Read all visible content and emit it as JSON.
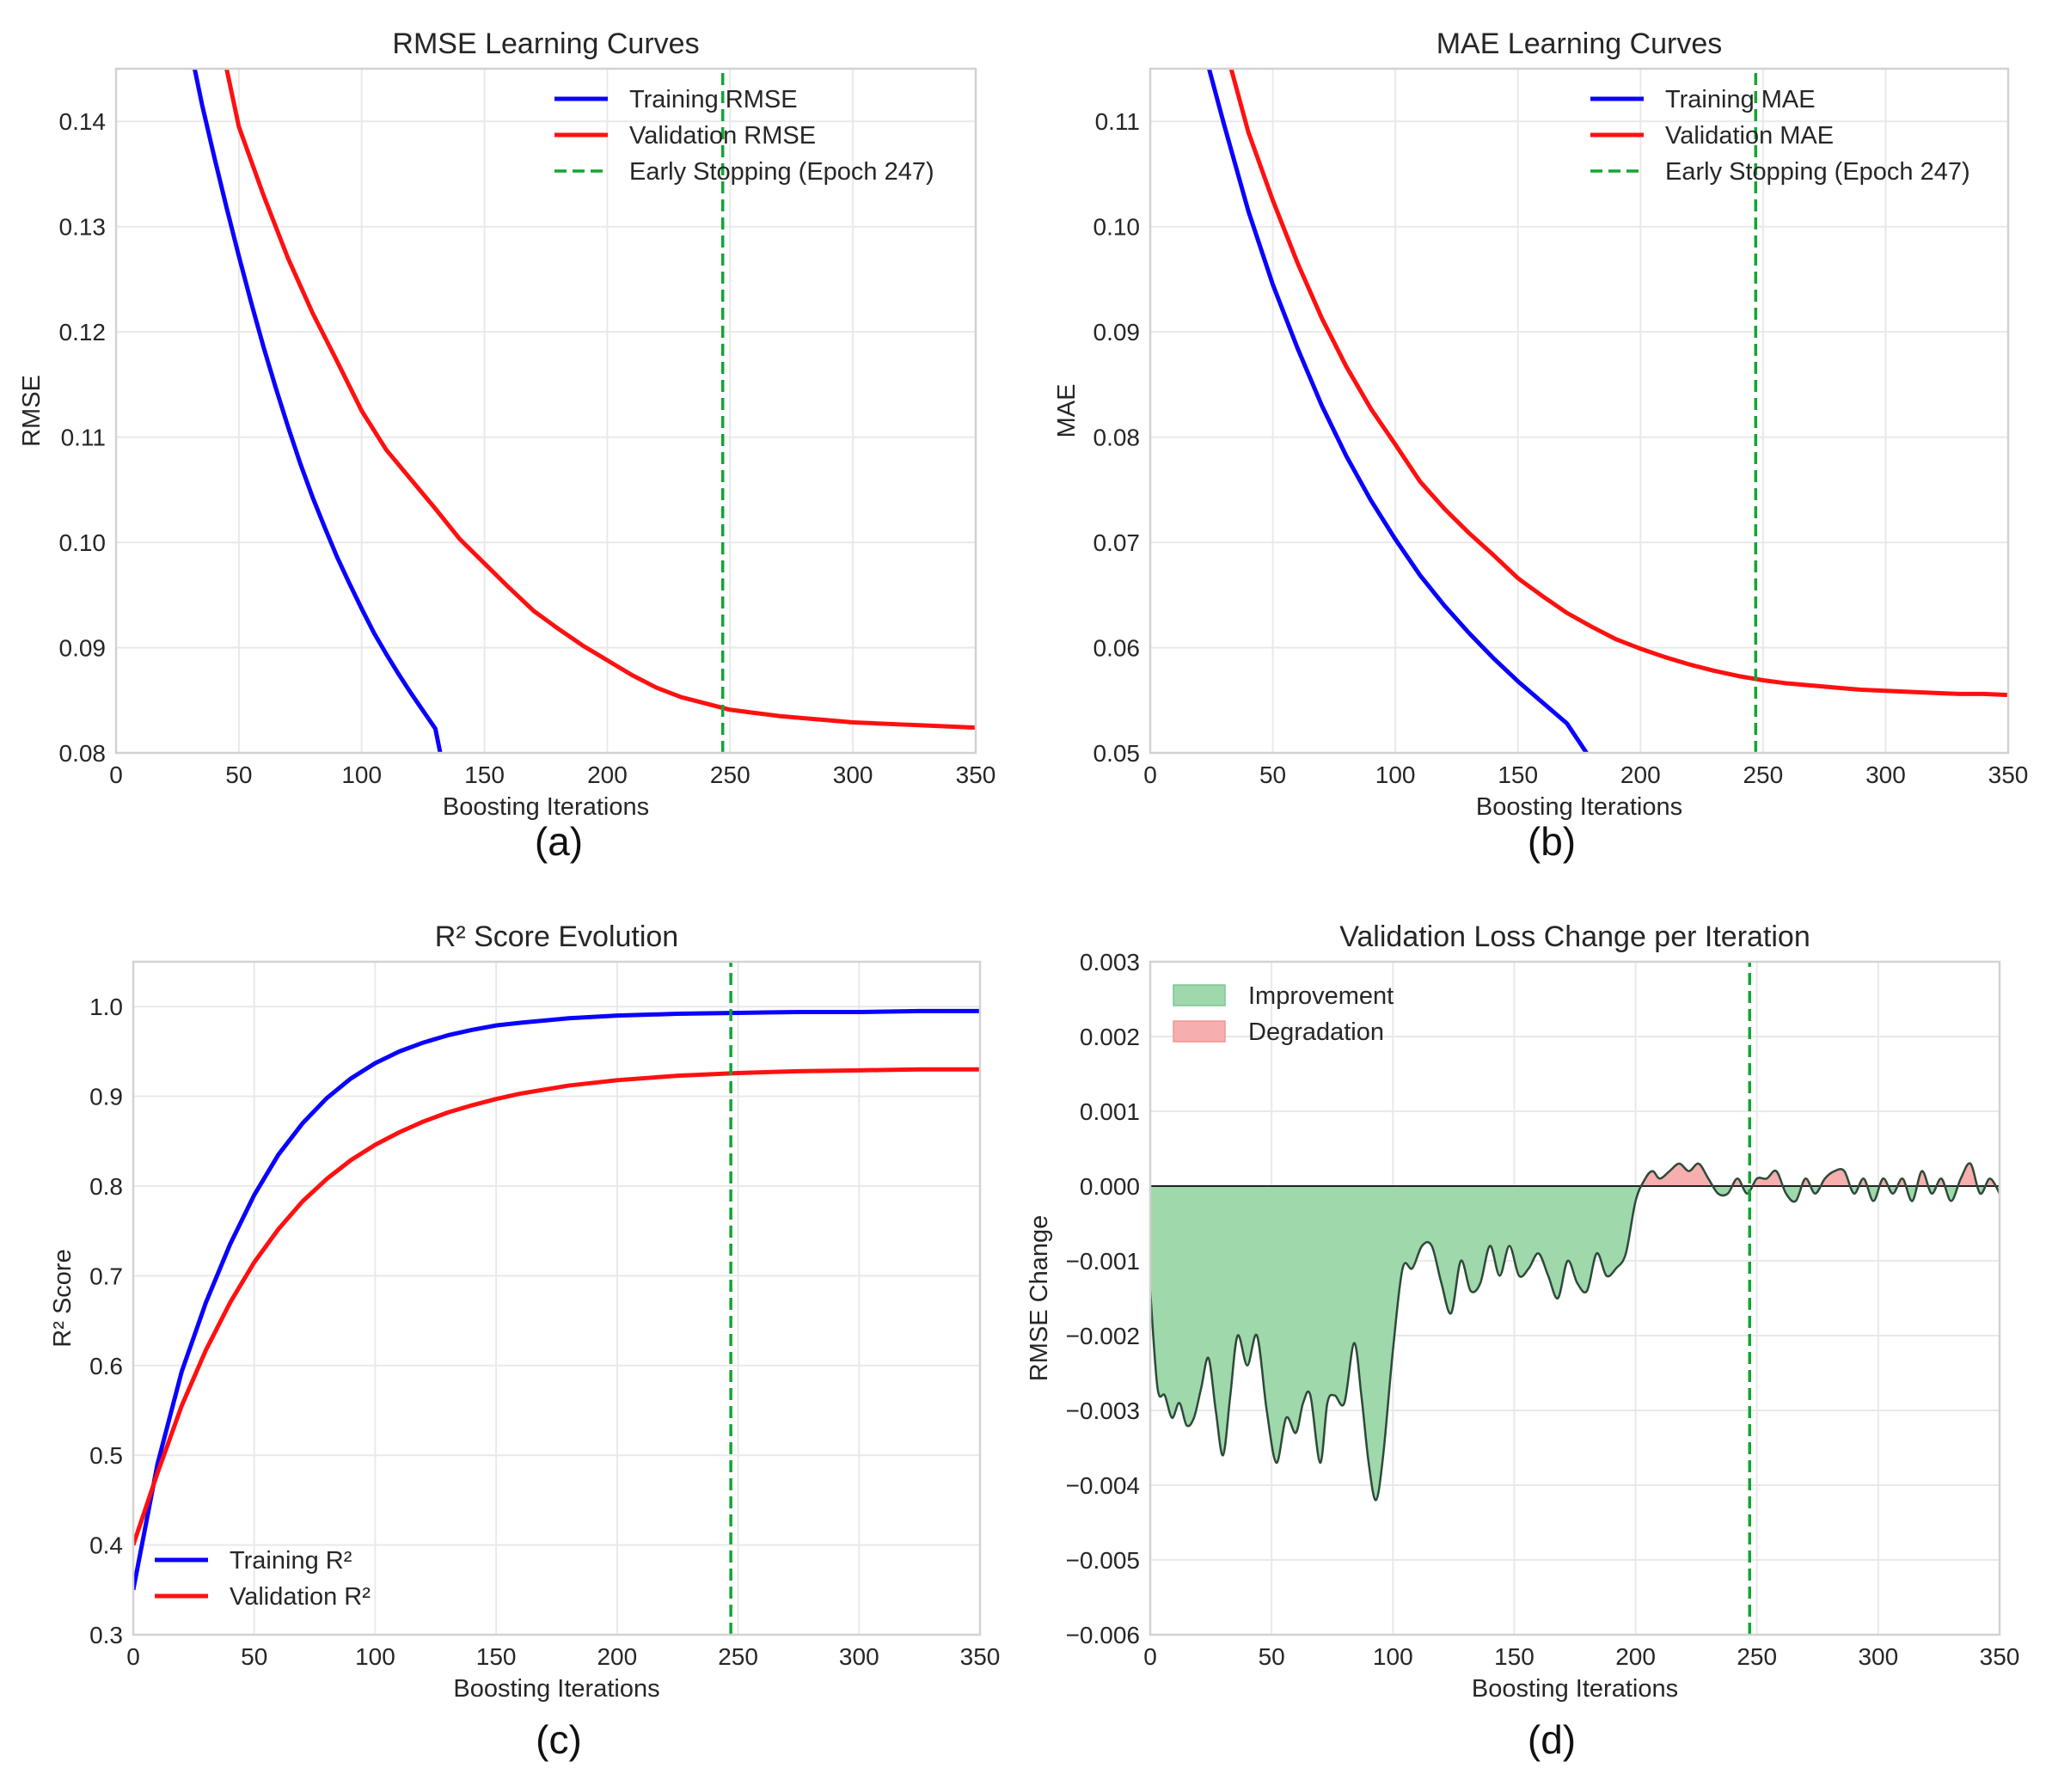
{
  "figure_title": "",
  "colors": {
    "training": "#0a00ff",
    "validation": "#ff1010",
    "early_stop": "#11a632",
    "improvement_fill": "#9ed8ab",
    "degradation_fill": "#f7aeae",
    "delta_line": "#2d4a38",
    "grid": "#e9e9e9",
    "frame": "#d2d2d2"
  },
  "chart_data": [
    {
      "id": "a",
      "type": "line",
      "title": "RMSE Learning Curves",
      "subfigure_label": "(a)",
      "xlabel": "Boosting Iterations",
      "ylabel": "RMSE",
      "xlim": [
        0,
        350
      ],
      "ylim": [
        0.08,
        0.145
      ],
      "xticks": [
        0,
        50,
        100,
        150,
        200,
        250,
        300,
        350
      ],
      "xtick_labels": [
        "0",
        "50",
        "100",
        "150",
        "200",
        "250",
        "300",
        "350"
      ],
      "yticks": [
        0.08,
        0.09,
        0.1,
        0.11,
        0.12,
        0.13,
        0.14
      ],
      "ytick_labels": [
        "0.08",
        "0.09",
        "0.10",
        "0.11",
        "0.12",
        "0.13",
        "0.14"
      ],
      "grid": true,
      "legend_position": "top-right",
      "early_stopping": 247,
      "series": [
        {
          "name": "Training RMSE",
          "role": "training",
          "style": "solid",
          "x": [
            32,
            35,
            40,
            45,
            50,
            55,
            60,
            65,
            70,
            75,
            80,
            85,
            90,
            95,
            100,
            105,
            110,
            115,
            120,
            125,
            130,
            132
          ],
          "values": [
            0.145,
            0.1416,
            0.1366,
            0.1318,
            0.1272,
            0.1228,
            0.1186,
            0.1147,
            0.111,
            0.1075,
            0.1043,
            0.1014,
            0.0986,
            0.0961,
            0.0937,
            0.0914,
            0.0894,
            0.0875,
            0.0857,
            0.084,
            0.0823,
            0.08
          ]
        },
        {
          "name": "Validation RMSE",
          "role": "validation",
          "style": "solid",
          "x": [
            45,
            50,
            60,
            70,
            80,
            90,
            100,
            110,
            120,
            130,
            140,
            150,
            160,
            170,
            180,
            190,
            200,
            210,
            220,
            230,
            240,
            250,
            260,
            270,
            280,
            290,
            300,
            310,
            320,
            330,
            340,
            350
          ],
          "values": [
            0.145,
            0.1395,
            0.133,
            0.127,
            0.1218,
            0.1172,
            0.1125,
            0.1088,
            0.106,
            0.1032,
            0.1003,
            0.098,
            0.0957,
            0.0935,
            0.0918,
            0.0902,
            0.0888,
            0.0874,
            0.0862,
            0.0853,
            0.0847,
            0.0841,
            0.0838,
            0.0835,
            0.0833,
            0.0831,
            0.0829,
            0.0828,
            0.0827,
            0.0826,
            0.0825,
            0.0824
          ]
        },
        {
          "name": "Early Stopping (Epoch 247)",
          "role": "early_stop",
          "style": "dashed",
          "x": [
            247,
            247
          ],
          "values": [
            0.08,
            0.145
          ]
        }
      ]
    },
    {
      "id": "b",
      "type": "line",
      "title": "MAE Learning Curves",
      "subfigure_label": "(b)",
      "xlabel": "Boosting Iterations",
      "ylabel": "MAE",
      "xlim": [
        0,
        350
      ],
      "ylim": [
        0.05,
        0.115
      ],
      "xticks": [
        0,
        50,
        100,
        150,
        200,
        250,
        300,
        350
      ],
      "xtick_labels": [
        "0",
        "50",
        "100",
        "150",
        "200",
        "250",
        "300",
        "350"
      ],
      "yticks": [
        0.05,
        0.06,
        0.07,
        0.08,
        0.09,
        0.1,
        0.11
      ],
      "ytick_labels": [
        "0.05",
        "0.06",
        "0.07",
        "0.08",
        "0.09",
        "0.10",
        "0.11"
      ],
      "grid": true,
      "legend_position": "top-right",
      "early_stopping": 247,
      "series": [
        {
          "name": "Training MAE",
          "role": "training",
          "style": "solid",
          "x": [
            24,
            30,
            40,
            50,
            60,
            70,
            80,
            90,
            100,
            110,
            120,
            130,
            140,
            150,
            160,
            170,
            178
          ],
          "values": [
            0.115,
            0.1098,
            0.1015,
            0.0945,
            0.0885,
            0.083,
            0.0782,
            0.074,
            0.0703,
            0.0669,
            0.064,
            0.0614,
            0.059,
            0.0568,
            0.0548,
            0.0528,
            0.05
          ]
        },
        {
          "name": "Validation MAE",
          "role": "validation",
          "style": "solid",
          "x": [
            33,
            40,
            50,
            60,
            70,
            80,
            90,
            100,
            110,
            120,
            130,
            140,
            150,
            160,
            170,
            180,
            190,
            200,
            210,
            220,
            230,
            240,
            250,
            260,
            270,
            280,
            290,
            300,
            310,
            320,
            330,
            340,
            350
          ],
          "values": [
            0.115,
            0.109,
            0.1025,
            0.0966,
            0.0913,
            0.0867,
            0.0827,
            0.0793,
            0.0758,
            0.0732,
            0.0709,
            0.0688,
            0.0666,
            0.0649,
            0.0633,
            0.062,
            0.0608,
            0.0599,
            0.0591,
            0.0584,
            0.0578,
            0.0573,
            0.0569,
            0.0566,
            0.0564,
            0.0562,
            0.056,
            0.0559,
            0.0558,
            0.0557,
            0.0556,
            0.0556,
            0.0555
          ]
        },
        {
          "name": "Early Stopping (Epoch 247)",
          "role": "early_stop",
          "style": "dashed",
          "x": [
            247,
            247
          ],
          "values": [
            0.05,
            0.115
          ]
        }
      ]
    },
    {
      "id": "c",
      "type": "line",
      "title": "R² Score Evolution",
      "subfigure_label": "(c)",
      "xlabel": "Boosting Iterations",
      "ylabel": "R² Score",
      "xlim": [
        0,
        350
      ],
      "ylim": [
        0.3,
        1.05
      ],
      "xticks": [
        0,
        50,
        100,
        150,
        200,
        250,
        300,
        350
      ],
      "xtick_labels": [
        "0",
        "50",
        "100",
        "150",
        "200",
        "250",
        "300",
        "350"
      ],
      "yticks": [
        0.3,
        0.4,
        0.5,
        0.6,
        0.7,
        0.8,
        0.9,
        1.0
      ],
      "ytick_labels": [
        "0.3",
        "0.4",
        "0.5",
        "0.6",
        "0.7",
        "0.8",
        "0.9",
        "1.0"
      ],
      "grid": true,
      "legend_position": "bottom-left",
      "early_stopping": 247,
      "series": [
        {
          "name": "Training R²",
          "role": "training",
          "style": "solid",
          "x": [
            0,
            10,
            20,
            30,
            40,
            50,
            60,
            70,
            80,
            90,
            100,
            110,
            120,
            130,
            140,
            150,
            160,
            180,
            200,
            225,
            250,
            275,
            300,
            325,
            350
          ],
          "values": [
            0.35,
            0.49,
            0.593,
            0.67,
            0.735,
            0.79,
            0.835,
            0.87,
            0.898,
            0.92,
            0.937,
            0.95,
            0.96,
            0.968,
            0.974,
            0.979,
            0.982,
            0.987,
            0.99,
            0.992,
            0.993,
            0.994,
            0.994,
            0.995,
            0.995
          ]
        },
        {
          "name": "Validation R²",
          "role": "validation",
          "style": "solid",
          "x": [
            0,
            10,
            20,
            30,
            40,
            50,
            60,
            70,
            80,
            90,
            100,
            110,
            120,
            130,
            140,
            150,
            160,
            180,
            200,
            225,
            250,
            275,
            300,
            325,
            350
          ],
          "values": [
            0.4,
            0.48,
            0.555,
            0.617,
            0.67,
            0.715,
            0.752,
            0.783,
            0.808,
            0.829,
            0.846,
            0.86,
            0.872,
            0.882,
            0.89,
            0.897,
            0.903,
            0.912,
            0.918,
            0.923,
            0.926,
            0.928,
            0.929,
            0.93,
            0.93
          ]
        },
        {
          "name": "Early Stopping",
          "role": "early_stop",
          "style": "dashed",
          "show_in_legend": false,
          "x": [
            247,
            247
          ],
          "values": [
            0.3,
            1.05
          ]
        }
      ]
    },
    {
      "id": "d",
      "type": "area",
      "title": "Validation Loss Change per Iteration",
      "subfigure_label": "(d)",
      "xlabel": "Boosting Iterations",
      "ylabel": "RMSE Change",
      "xlim": [
        0,
        350
      ],
      "ylim": [
        -0.006,
        0.003
      ],
      "xticks": [
        0,
        50,
        100,
        150,
        200,
        250,
        300,
        350
      ],
      "xtick_labels": [
        "0",
        "50",
        "100",
        "150",
        "200",
        "250",
        "300",
        "350"
      ],
      "yticks": [
        -0.006,
        -0.005,
        -0.004,
        -0.003,
        -0.002,
        -0.001,
        0.0,
        0.001,
        0.002,
        0.003
      ],
      "ytick_labels": [
        "−0.006",
        "−0.005",
        "−0.004",
        "−0.003",
        "−0.002",
        "−0.001",
        "0.000",
        "0.001",
        "0.002",
        "0.003"
      ],
      "grid": true,
      "legend_position": "top-left",
      "early_stopping": 247,
      "legend": [
        {
          "name": "Improvement",
          "role": "improvement_fill"
        },
        {
          "name": "Degradation",
          "role": "degradation_fill"
        }
      ],
      "series": [
        {
          "name": "RMSE Change",
          "role": "delta",
          "style": "solid",
          "x": [
            0,
            3,
            6,
            9,
            12,
            15,
            18,
            21,
            24,
            27,
            30,
            33,
            36,
            40,
            44,
            48,
            52,
            56,
            60,
            63,
            66,
            70,
            73,
            76,
            80,
            84,
            87,
            90,
            93,
            96,
            100,
            104,
            108,
            112,
            116,
            120,
            124,
            128,
            132,
            136,
            140,
            144,
            148,
            152,
            156,
            160,
            164,
            168,
            172,
            176,
            180,
            184,
            188,
            192,
            196,
            200,
            204,
            207,
            210,
            214,
            218,
            222,
            226,
            230,
            234,
            238,
            242,
            246,
            250,
            254,
            258,
            262,
            266,
            270,
            274,
            278,
            282,
            286,
            290,
            294,
            298,
            302,
            306,
            310,
            314,
            318,
            322,
            326,
            330,
            334,
            338,
            342,
            346,
            350
          ],
          "values": [
            -0.0014,
            -0.0027,
            -0.0028,
            -0.0031,
            -0.0029,
            -0.0032,
            -0.0031,
            -0.0027,
            -0.0023,
            -0.003,
            -0.0036,
            -0.0028,
            -0.002,
            -0.0024,
            -0.002,
            -0.003,
            -0.0037,
            -0.0031,
            -0.0033,
            -0.0029,
            -0.0028,
            -0.0037,
            -0.0029,
            -0.0028,
            -0.0029,
            -0.0021,
            -0.0028,
            -0.0037,
            -0.0042,
            -0.0036,
            -0.0022,
            -0.0011,
            -0.0011,
            -0.0008,
            -0.0008,
            -0.0013,
            -0.0017,
            -0.001,
            -0.0014,
            -0.0013,
            -0.0008,
            -0.0012,
            -0.0008,
            -0.0012,
            -0.0011,
            -0.0009,
            -0.0012,
            -0.0015,
            -0.001,
            -0.0013,
            -0.0014,
            -0.0009,
            -0.0012,
            -0.0011,
            -0.0009,
            -0.0002,
            0.0001,
            0.0002,
            0.0001,
            0.0002,
            0.0003,
            0.0002,
            0.0003,
            0.0001,
            -0.0001,
            -0.0001,
            0.0001,
            -0.0001,
            0.0001,
            0.0001,
            0.0002,
            -0.0001,
            -0.0002,
            0.0001,
            -0.0001,
            0.0001,
            0.0002,
            0.0002,
            -0.0001,
            0.0001,
            -0.0002,
            0.0001,
            -0.0001,
            0.0001,
            -0.0002,
            0.0002,
            -0.0001,
            0.0001,
            -0.0002,
            0.0001,
            0.0003,
            -0.0001,
            0.0001,
            -0.0001
          ]
        },
        {
          "name": "Early Stopping",
          "role": "early_stop",
          "style": "dashed",
          "show_in_legend": false,
          "x": [
            247,
            247
          ],
          "values": [
            -0.006,
            0.003
          ]
        }
      ]
    }
  ]
}
